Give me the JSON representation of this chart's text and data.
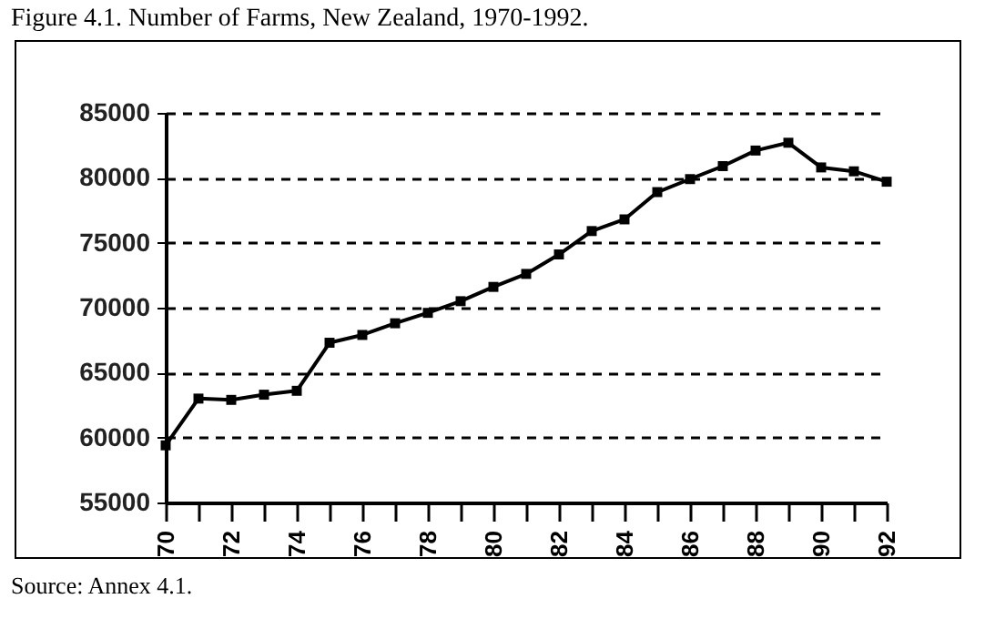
{
  "chart_data": {
    "type": "line",
    "title": "Figure 4.1. Number of Farms, New Zealand, 1970-1992.",
    "annotations": [
      "Source: Annex 4.1."
    ],
    "x": [
      70,
      71,
      72,
      73,
      74,
      75,
      76,
      77,
      78,
      79,
      80,
      81,
      82,
      83,
      84,
      85,
      86,
      87,
      88,
      89,
      90,
      91,
      92
    ],
    "series": [
      {
        "color": "#000000",
        "values": [
          59400,
          63000,
          62900,
          63300,
          63600,
          67300,
          67900,
          68800,
          69600,
          70500,
          71600,
          72600,
          74100,
          75900,
          76800,
          78900,
          79900,
          80900,
          82100,
          82700,
          80800,
          80500,
          79700
        ]
      }
    ],
    "xlim": [
      70,
      92
    ],
    "xticks": [
      70,
      {
        "value": 71,
        "label": null
      },
      72,
      {
        "value": 73,
        "label": null
      },
      74,
      {
        "value": 75,
        "label": null
      },
      76,
      {
        "value": 77,
        "label": null
      },
      78,
      {
        "value": 79,
        "label": null
      },
      80,
      {
        "value": 81,
        "label": null
      },
      82,
      {
        "value": 83,
        "label": null
      },
      84,
      {
        "value": 85,
        "label": null
      },
      86,
      {
        "value": 87,
        "label": null
      },
      88,
      {
        "value": 89,
        "label": null
      },
      90,
      {
        "value": 91,
        "label": null
      },
      92
    ],
    "ylim": [
      55000,
      85000
    ],
    "yticks": [
      55000,
      60000,
      65000,
      70000,
      75000,
      80000,
      85000
    ],
    "grid": "y",
    "marker": "square",
    "line_style": "solid"
  }
}
